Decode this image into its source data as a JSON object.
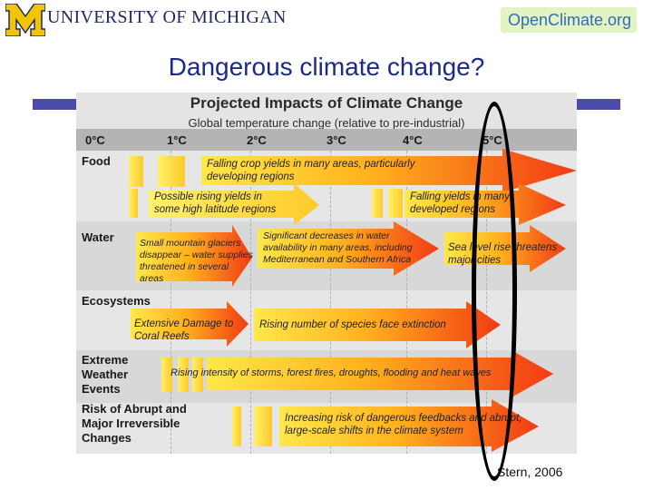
{
  "header": {
    "university_logo_text": "UNIVERSITY OF MICHIGAN",
    "openclimate_logo_text": "OpenClimate.org"
  },
  "slide": {
    "title": "Dangerous climate change?",
    "citation": "Stern, 2006"
  },
  "figure": {
    "title": "Projected Impacts of Climate Change",
    "subtitle": "Global temperature change (relative to pre-industrial)",
    "ticks": [
      "0°C",
      "1°C",
      "2°C",
      "3°C",
      "4°C",
      "5°C"
    ],
    "rows": [
      {
        "label": "Food"
      },
      {
        "label": "Water"
      },
      {
        "label": "Ecosystems"
      },
      {
        "label": "Extreme\nWeather\nEvents"
      },
      {
        "label": "Risk of Abrupt and\nMajor Irreversible\nChanges"
      }
    ],
    "arrows": [
      "Falling crop yields in many areas, particularly developing regions",
      "Possible rising yields in some high latitude regions",
      "Falling yields in many developed regions",
      "Small mountain glaciers disappear – water supplies threatened in several areas",
      "Significant decreases in water availability in many areas, including Mediterranean and Southern Africa",
      "Sea level rise threatens major cities",
      "Extensive Damage to Coral Reefs",
      "Rising number of species face extinction",
      "Rising intensity of storms, forest fires, droughts, flooding and heat waves",
      "Increasing risk of dangerous feedbacks and abrupt, large-scale shifts in the climate system"
    ],
    "colors": {
      "arrow_start": "#ffe84a",
      "arrow_end": "#f23a14"
    }
  }
}
